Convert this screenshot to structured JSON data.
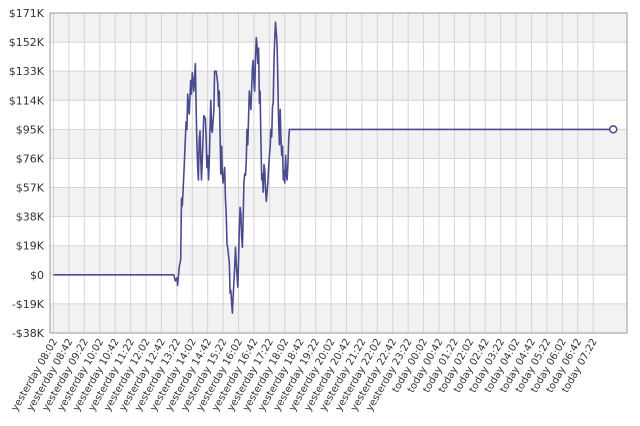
{
  "chart_data": {
    "type": "line",
    "title": "",
    "xlabel": "",
    "ylabel": "",
    "ylim": [
      -38000,
      171000
    ],
    "grid": true,
    "legend": "none",
    "y_ticks": [
      {
        "value": 171000,
        "label": "$171K"
      },
      {
        "value": 152000,
        "label": "$152K"
      },
      {
        "value": 133000,
        "label": "$133K"
      },
      {
        "value": 114000,
        "label": "$114K"
      },
      {
        "value": 95000,
        "label": "$95K"
      },
      {
        "value": 76000,
        "label": "$76K"
      },
      {
        "value": 57000,
        "label": "$57K"
      },
      {
        "value": 38000,
        "label": "$38K"
      },
      {
        "value": 19000,
        "label": "$19K"
      },
      {
        "value": 0,
        "label": "$0"
      },
      {
        "value": -19000,
        "label": "-$19K"
      },
      {
        "value": -38000,
        "label": "-$38K"
      }
    ],
    "x_ticks": [
      "yesterday 08:02",
      "yesterday 08:42",
      "yesterday 09:22",
      "yesterday 10:02",
      "yesterday 10:42",
      "yesterday 11:22",
      "yesterday 12:02",
      "yesterday 12:42",
      "yesterday 13:22",
      "yesterday 14:02",
      "yesterday 14:42",
      "yesterday 15:22",
      "yesterday 16:02",
      "yesterday 16:42",
      "yesterday 17:22",
      "yesterday 18:02",
      "yesterday 18:42",
      "yesterday 19:22",
      "yesterday 20:02",
      "yesterday 20:42",
      "yesterday 21:22",
      "yesterday 22:02",
      "yesterday 22:42",
      "yesterday 23:22",
      "today 00:02",
      "today 00:42",
      "today 01:22",
      "today 02:02",
      "today 02:42",
      "today 03:22",
      "today 04:02",
      "today 04:42",
      "today 05:22",
      "today 06:02",
      "today 06:42",
      "today 07:22"
    ],
    "series": [
      {
        "line_color": "#4a4a8e",
        "points": [
          [
            0,
            0
          ],
          [
            7.8,
            0
          ],
          [
            7.9,
            -4000
          ],
          [
            8.0,
            -2000
          ],
          [
            8.05,
            -7000
          ],
          [
            8.15,
            5000
          ],
          [
            8.25,
            10000
          ],
          [
            8.3,
            50000
          ],
          [
            8.35,
            45000
          ],
          [
            8.45,
            65000
          ],
          [
            8.55,
            88000
          ],
          [
            8.6,
            100000
          ],
          [
            8.65,
            95000
          ],
          [
            8.7,
            118000
          ],
          [
            8.8,
            105000
          ],
          [
            8.9,
            127000
          ],
          [
            8.95,
            118000
          ],
          [
            9.0,
            132000
          ],
          [
            9.1,
            120000
          ],
          [
            9.2,
            138000
          ],
          [
            9.25,
            110000
          ],
          [
            9.3,
            85000
          ],
          [
            9.35,
            70000
          ],
          [
            9.4,
            62000
          ],
          [
            9.45,
            88000
          ],
          [
            9.5,
            94000
          ],
          [
            9.55,
            75000
          ],
          [
            9.6,
            62000
          ],
          [
            9.65,
            76000
          ],
          [
            9.75,
            104000
          ],
          [
            9.85,
            102000
          ],
          [
            9.9,
            88000
          ],
          [
            9.95,
            70000
          ],
          [
            10.0,
            78000
          ],
          [
            10.05,
            62000
          ],
          [
            10.1,
            72000
          ],
          [
            10.15,
            95000
          ],
          [
            10.2,
            114000
          ],
          [
            10.25,
            95000
          ],
          [
            10.3,
            93000
          ],
          [
            10.4,
            108000
          ],
          [
            10.45,
            133000
          ],
          [
            10.55,
            133000
          ],
          [
            10.65,
            125000
          ],
          [
            10.7,
            110000
          ],
          [
            10.75,
            120000
          ],
          [
            10.8,
            95000
          ],
          [
            10.85,
            66000
          ],
          [
            10.9,
            84000
          ],
          [
            10.95,
            66000
          ],
          [
            11.0,
            60000
          ],
          [
            11.1,
            70000
          ],
          [
            11.15,
            50000
          ],
          [
            11.2,
            40000
          ],
          [
            11.25,
            20000
          ],
          [
            11.3,
            18000
          ],
          [
            11.4,
            8000
          ],
          [
            11.45,
            -12000
          ],
          [
            11.5,
            -10000
          ],
          [
            11.55,
            -18000
          ],
          [
            11.6,
            -25000
          ],
          [
            11.65,
            -15000
          ],
          [
            11.7,
            -5000
          ],
          [
            11.75,
            5000
          ],
          [
            11.8,
            18000
          ],
          [
            11.85,
            8000
          ],
          [
            11.95,
            -8000
          ],
          [
            12.0,
            8000
          ],
          [
            12.05,
            30000
          ],
          [
            12.1,
            44000
          ],
          [
            12.15,
            40000
          ],
          [
            12.2,
            25000
          ],
          [
            12.25,
            18000
          ],
          [
            12.3,
            38000
          ],
          [
            12.35,
            60000
          ],
          [
            12.4,
            66000
          ],
          [
            12.45,
            65000
          ],
          [
            12.5,
            75000
          ],
          [
            12.55,
            95000
          ],
          [
            12.6,
            85000
          ],
          [
            12.7,
            120000
          ],
          [
            12.8,
            108000
          ],
          [
            12.9,
            135000
          ],
          [
            12.95,
            140000
          ],
          [
            13.0,
            125000
          ],
          [
            13.05,
            120000
          ],
          [
            13.1,
            142000
          ],
          [
            13.15,
            155000
          ],
          [
            13.2,
            150000
          ],
          [
            13.25,
            138000
          ],
          [
            13.3,
            148000
          ],
          [
            13.35,
            112000
          ],
          [
            13.4,
            120000
          ],
          [
            13.45,
            88000
          ],
          [
            13.5,
            62000
          ],
          [
            13.55,
            66000
          ],
          [
            13.6,
            54000
          ],
          [
            13.65,
            72000
          ],
          [
            13.7,
            68000
          ],
          [
            13.75,
            56000
          ],
          [
            13.8,
            48000
          ],
          [
            13.9,
            60000
          ],
          [
            14.0,
            78000
          ],
          [
            14.05,
            84000
          ],
          [
            14.1,
            95000
          ],
          [
            14.15,
            90000
          ],
          [
            14.2,
            110000
          ],
          [
            14.25,
            112000
          ],
          [
            14.3,
            140000
          ],
          [
            14.35,
            155000
          ],
          [
            14.4,
            165000
          ],
          [
            14.45,
            158000
          ],
          [
            14.5,
            150000
          ],
          [
            14.55,
            125000
          ],
          [
            14.6,
            100000
          ],
          [
            14.65,
            85000
          ],
          [
            14.7,
            108000
          ],
          [
            14.75,
            90000
          ],
          [
            14.8,
            78000
          ],
          [
            14.85,
            84000
          ],
          [
            14.9,
            62000
          ],
          [
            14.95,
            68000
          ],
          [
            15.0,
            60000
          ],
          [
            15.05,
            78000
          ],
          [
            15.1,
            66000
          ],
          [
            15.15,
            62000
          ],
          [
            15.2,
            72000
          ],
          [
            15.25,
            88000
          ],
          [
            15.3,
            95000
          ],
          [
            15.35,
            95000
          ],
          [
            36.3,
            95000
          ]
        ]
      }
    ],
    "end_marker": [
      36.3,
      95000
    ]
  }
}
